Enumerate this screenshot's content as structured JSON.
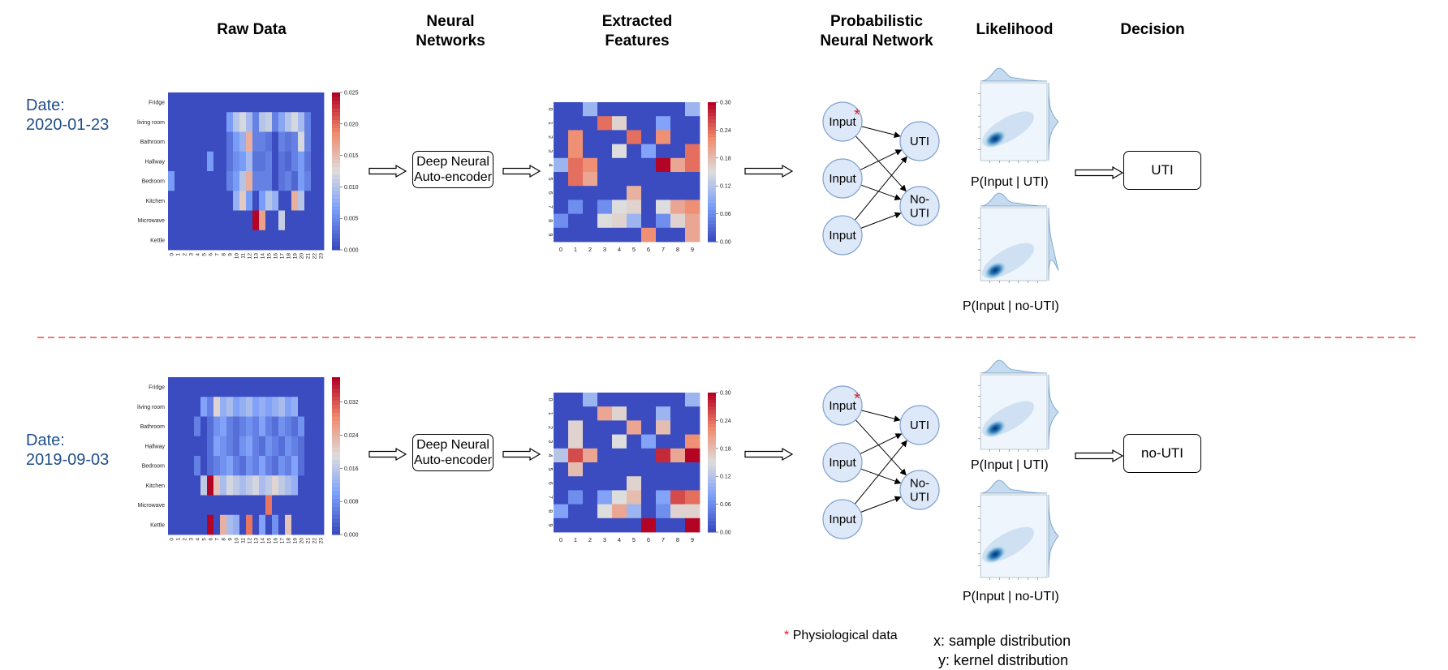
{
  "headers": {
    "raw": "Raw Data",
    "nn_line1": "Neural",
    "nn_line2": "Networks",
    "ef_line1": "Extracted",
    "ef_line2": "Features",
    "pnn_line1": "Probabilistic",
    "pnn_line2": "Neural Network",
    "likelihood": "Likelihood",
    "decision": "Decision"
  },
  "rows": [
    {
      "date_label": "Date:",
      "date": "2020-01-23",
      "encoder_line1": "Deep Neural",
      "encoder_line2": "Auto-encoder",
      "raw_colorbar_ticks": [
        "0.025",
        "0.020",
        "0.015",
        "0.010",
        "0.005",
        "0.000"
      ],
      "feat_colorbar_ticks": [
        "0.30",
        "0.24",
        "0.18",
        "0.12",
        "0.06",
        "0.00"
      ],
      "pnn_inputs": [
        "Input",
        "Input",
        "Input"
      ],
      "pnn_outputs": [
        "UTI",
        "No-\nUTI"
      ],
      "lik_caption_1": "P(Input | UTI)",
      "lik_caption_2": "P(Input | no-UTI)",
      "decision": "UTI"
    },
    {
      "date_label": "Date:",
      "date": "2019-09-03",
      "encoder_line1": "Deep Neural",
      "encoder_line2": "Auto-encoder",
      "raw_colorbar_ticks": [
        "0.032",
        "0.024",
        "0.016",
        "0.008",
        "0.000"
      ],
      "feat_colorbar_ticks": [
        "0.30",
        "0.24",
        "0.18",
        "0.12",
        "0.06",
        "0.00"
      ],
      "pnn_inputs": [
        "Input",
        "Input",
        "Input"
      ],
      "pnn_outputs": [
        "UTI",
        "No-\nUTI"
      ],
      "lik_caption_1": "P(Input | UTI)",
      "lik_caption_2": "P(Input | no-UTI)",
      "decision": "no-UTI"
    }
  ],
  "raw_rows": [
    "Fridge",
    "living room",
    "Bathroom",
    "Hallway",
    "Bedroom",
    "Kitchen",
    "Microwave",
    "Kettle"
  ],
  "raw_cols": [
    "0",
    "1",
    "2",
    "3",
    "4",
    "5",
    "6",
    "7",
    "8",
    "9",
    "10",
    "11",
    "12",
    "13",
    "14",
    "15",
    "16",
    "17",
    "18",
    "19",
    "20",
    "21",
    "22",
    "23"
  ],
  "feat_ticks": [
    "0",
    "1",
    "2",
    "3",
    "4",
    "5",
    "6",
    "7",
    "8",
    "9"
  ],
  "legend": {
    "asterisk": "*",
    "physio": "Physiological data",
    "x_note": "x: sample distribution",
    "y_note": "y: kernel distribution"
  },
  "colors": {
    "heatmap_low": "#3b4cc0",
    "heatmap_high": "#b40426",
    "date_text": "#1f4e8c",
    "separator": "#e84a4a",
    "node_fill": "#dde8f8"
  },
  "chart_data": [
    {
      "type": "heatmap",
      "name_note": "raw data heatmap, 2020-01-23",
      "rows": [
        "Fridge",
        "living room",
        "Bathroom",
        "Hallway",
        "Bedroom",
        "Kitchen",
        "Microwave",
        "Kettle"
      ],
      "cols": [
        "0",
        "1",
        "2",
        "3",
        "4",
        "5",
        "6",
        "7",
        "8",
        "9",
        "10",
        "11",
        "12",
        "13",
        "14",
        "15",
        "16",
        "17",
        "18",
        "19",
        "20",
        "21",
        "22",
        "23"
      ],
      "vrange": [
        0,
        0.025
      ],
      "values": [
        [
          0,
          0,
          0,
          0,
          0,
          0,
          0,
          0,
          0,
          0,
          0,
          0,
          0,
          0,
          0,
          0,
          0,
          0,
          0,
          0,
          0,
          0,
          0,
          0
        ],
        [
          0,
          0,
          0,
          0,
          0,
          0,
          0,
          0,
          0,
          0.006,
          0.01,
          0.012,
          0.009,
          0.004,
          0.01,
          0.011,
          0.004,
          0.007,
          0.01,
          0.012,
          0.009,
          0.004,
          0,
          0
        ],
        [
          0,
          0,
          0,
          0,
          0,
          0,
          0,
          0,
          0,
          0.003,
          0.006,
          0.008,
          0.016,
          0.004,
          0.004,
          0.003,
          0,
          0.004,
          0.003,
          0.004,
          0.012,
          0.004,
          0,
          0
        ],
        [
          0,
          0,
          0,
          0,
          0,
          0,
          0.006,
          0,
          0,
          0.003,
          0.005,
          0.006,
          0.009,
          0.003,
          0.003,
          0.004,
          0,
          0.003,
          0.002,
          0.004,
          0.006,
          0.003,
          0,
          0
        ],
        [
          0.006,
          0,
          0,
          0,
          0,
          0,
          0,
          0,
          0,
          0.004,
          0.006,
          0.01,
          0.016,
          0.004,
          0.004,
          0.004,
          0,
          0.003,
          0.004,
          0.002,
          0.006,
          0.004,
          0,
          0
        ],
        [
          0,
          0,
          0,
          0,
          0,
          0,
          0,
          0,
          0,
          0,
          0.008,
          0.014,
          0.006,
          0,
          0.006,
          0.01,
          0.008,
          0,
          0,
          0.016,
          0.01,
          0,
          0,
          0
        ],
        [
          0,
          0,
          0,
          0,
          0,
          0,
          0,
          0,
          0,
          0,
          0,
          0,
          0,
          0.025,
          0.017,
          0,
          0,
          0.011,
          0,
          0,
          0,
          0,
          0,
          0
        ],
        [
          0,
          0,
          0,
          0,
          0,
          0,
          0,
          0,
          0,
          0,
          0,
          0,
          0,
          0,
          0,
          0,
          0,
          0,
          0,
          0,
          0,
          0,
          0,
          0
        ]
      ]
    },
    {
      "type": "heatmap",
      "name_note": "extracted features heatmap, 2020-01-23",
      "rows": [
        "0",
        "1",
        "2",
        "3",
        "4",
        "5",
        "6",
        "7",
        "8",
        "9"
      ],
      "cols": [
        "0",
        "1",
        "2",
        "3",
        "4",
        "5",
        "6",
        "7",
        "8",
        "9"
      ],
      "vrange": [
        0,
        0.3
      ],
      "values": [
        [
          0,
          0,
          0.1,
          0,
          0,
          0,
          0,
          0,
          0,
          0.1
        ],
        [
          0,
          0,
          0,
          0.24,
          0.16,
          0,
          0,
          0.08,
          0,
          0
        ],
        [
          0,
          0.22,
          0,
          0,
          0,
          0.24,
          0,
          0.22,
          0,
          0
        ],
        [
          0,
          0.22,
          0,
          0,
          0.15,
          0,
          0.08,
          0,
          0,
          0.24
        ],
        [
          0.1,
          0.24,
          0.22,
          0,
          0,
          0,
          0,
          0.33,
          0.2,
          0.24
        ],
        [
          0,
          0.24,
          0.2,
          0,
          0,
          0,
          0,
          0,
          0,
          0
        ],
        [
          0,
          0,
          0,
          0,
          0,
          0.19,
          0,
          0,
          0,
          0
        ],
        [
          0,
          0.06,
          0,
          0.06,
          0.15,
          0.16,
          0,
          0.15,
          0.2,
          0.22
        ],
        [
          0.06,
          0,
          0,
          0.15,
          0.16,
          0.1,
          0,
          0.06,
          0.16,
          0.2
        ],
        [
          0,
          0,
          0,
          0,
          0,
          0,
          0.22,
          0,
          0,
          0.2
        ]
      ]
    },
    {
      "type": "heatmap",
      "name_note": "raw data heatmap, 2019-09-03",
      "rows": [
        "Fridge",
        "living room",
        "Bathroom",
        "Hallway",
        "Bedroom",
        "Kitchen",
        "Microwave",
        "Kettle"
      ],
      "cols": [
        "0",
        "1",
        "2",
        "3",
        "4",
        "5",
        "6",
        "7",
        "8",
        "9",
        "10",
        "11",
        "12",
        "13",
        "14",
        "15",
        "16",
        "17",
        "18",
        "19",
        "20",
        "21",
        "22",
        "23"
      ],
      "vrange": [
        0,
        0.038
      ],
      "values": [
        [
          0,
          0,
          0,
          0,
          0,
          0,
          0,
          0,
          0,
          0,
          0,
          0,
          0,
          0,
          0,
          0,
          0,
          0,
          0,
          0,
          0,
          0,
          0,
          0
        ],
        [
          0,
          0,
          0,
          0,
          0,
          0.01,
          0.006,
          0.02,
          0.012,
          0.014,
          0.01,
          0.012,
          0.014,
          0.01,
          0.012,
          0.01,
          0.012,
          0.014,
          0.01,
          0.012,
          0,
          0,
          0,
          0
        ],
        [
          0,
          0,
          0,
          0,
          0.006,
          0,
          0.004,
          0.008,
          0.01,
          0.006,
          0.004,
          0.006,
          0.008,
          0.006,
          0.01,
          0.006,
          0.004,
          0.008,
          0.006,
          0.004,
          0.008,
          0,
          0,
          0
        ],
        [
          0,
          0,
          0,
          0,
          0,
          0,
          0.004,
          0.01,
          0.008,
          0.006,
          0.004,
          0.008,
          0.01,
          0.006,
          0.004,
          0.008,
          0.006,
          0.004,
          0.008,
          0.006,
          0.004,
          0,
          0,
          0
        ],
        [
          0,
          0,
          0,
          0,
          0.006,
          0,
          0.004,
          0.006,
          0.008,
          0.01,
          0.006,
          0.004,
          0.008,
          0.006,
          0.01,
          0.006,
          0.004,
          0.008,
          0.006,
          0.01,
          0.004,
          0,
          0,
          0
        ],
        [
          0,
          0,
          0,
          0,
          0,
          0.016,
          0.038,
          0.022,
          0.014,
          0.018,
          0.016,
          0.014,
          0.016,
          0.018,
          0.014,
          0.016,
          0.02,
          0.016,
          0.014,
          0.012,
          0,
          0,
          0,
          0
        ],
        [
          0,
          0,
          0,
          0,
          0,
          0,
          0,
          0,
          0,
          0,
          0,
          0,
          0,
          0,
          0,
          0.03,
          0,
          0,
          0,
          0,
          0,
          0,
          0,
          0
        ],
        [
          0,
          0,
          0,
          0,
          0,
          0,
          0.038,
          0,
          0.024,
          0.014,
          0.012,
          0,
          0.03,
          0,
          0.01,
          0,
          0.008,
          0,
          0.022,
          0,
          0,
          0,
          0,
          0
        ]
      ]
    },
    {
      "type": "heatmap",
      "name_note": "extracted features heatmap, 2019-09-03",
      "rows": [
        "0",
        "1",
        "2",
        "3",
        "4",
        "5",
        "6",
        "7",
        "8",
        "9"
      ],
      "cols": [
        "0",
        "1",
        "2",
        "3",
        "4",
        "5",
        "6",
        "7",
        "8",
        "9"
      ],
      "vrange": [
        0,
        0.3
      ],
      "values": [
        [
          0,
          0,
          0.1,
          0,
          0,
          0,
          0,
          0,
          0,
          0.1
        ],
        [
          0,
          0,
          0,
          0.2,
          0.16,
          0,
          0,
          0.1,
          0,
          0
        ],
        [
          0,
          0.16,
          0,
          0,
          0,
          0.2,
          0,
          0.18,
          0,
          0
        ],
        [
          0,
          0.16,
          0,
          0,
          0.15,
          0,
          0.08,
          0,
          0,
          0.22
        ],
        [
          0.12,
          0.26,
          0.2,
          0,
          0,
          0,
          0,
          0.28,
          0.2,
          0.3
        ],
        [
          0,
          0.18,
          0,
          0,
          0,
          0,
          0,
          0,
          0,
          0
        ],
        [
          0,
          0,
          0,
          0,
          0,
          0.16,
          0,
          0,
          0,
          0
        ],
        [
          0,
          0.06,
          0,
          0.08,
          0.15,
          0.18,
          0,
          0.08,
          0.26,
          0.24
        ],
        [
          0.08,
          0,
          0,
          0.15,
          0.2,
          0.1,
          0,
          0.06,
          0.16,
          0.16
        ],
        [
          0,
          0,
          0,
          0,
          0,
          0,
          0.3,
          0,
          0,
          0.32
        ]
      ]
    }
  ]
}
